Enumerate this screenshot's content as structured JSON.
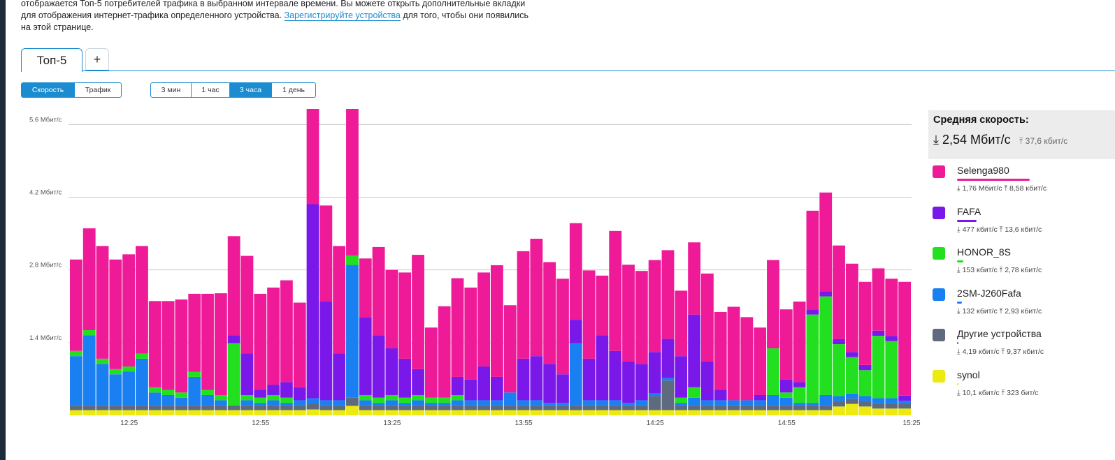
{
  "description": {
    "line1": "отображается Топ-5 потребителей трафика в выбранном интервале времени. Вы можете открыть дополнительные вкладки",
    "line2_pre": "для отображения интернет-трафика определенного устройства. ",
    "link": "Зарегистрируйте устройства",
    "line2_post": " для того, чтобы они появились",
    "line3": "на этой странице."
  },
  "tabs": [
    {
      "label": "Топ-5"
    }
  ],
  "add_tab_label": "+",
  "metric_toggle": [
    "Скорость",
    "Трафик"
  ],
  "metric_selected": "Скорость",
  "range_toggle": [
    "3 мин",
    "1 час",
    "3 часа",
    "1 день"
  ],
  "range_selected": "3 часа",
  "summary": {
    "title": "Средняя скорость:",
    "download": "2,54 Мбит/с",
    "upload": "37,6 кбит/с"
  },
  "legend": [
    {
      "name": "Selenga980",
      "color": "#ee1a98",
      "down": "1,76 Мбит/с",
      "up": "8,58 кбит/с",
      "share": 0.7
    },
    {
      "name": "FAFA",
      "color": "#7a18ea",
      "down": "477 кбит/с",
      "up": "13,6 кбит/с",
      "share": 0.19
    },
    {
      "name": "HONOR_8S",
      "color": "#22e01f",
      "down": "153 кбит/с",
      "up": "2,78 кбит/с",
      "share": 0.06
    },
    {
      "name": "2SM-J260Fafa",
      "color": "#1a7ff0",
      "down": "132 кбит/с",
      "up": "2,93 кбит/с",
      "share": 0.05
    },
    {
      "name": "Другие устройства",
      "color": "#5e6a7e",
      "down": "4,19 кбит/с",
      "up": "9,37 кбит/с",
      "share": 0.002
    },
    {
      "name": "synol",
      "color": "#ecea10",
      "down": "10,1 кбит/с",
      "up": "323 бит/с",
      "share": 0.004
    }
  ],
  "chart_data": {
    "type": "bar",
    "stacked": true,
    "ylabel_unit": "Мбит/с",
    "y_ticks": [
      "1.4 Мбит/с",
      "2.8 Мбит/с",
      "4.2 Мбит/с",
      "5.6 Мбит/с"
    ],
    "ylim": [
      0,
      5.9
    ],
    "x_ticks": [
      "12:25",
      "12:55",
      "13:25",
      "13:55",
      "14:25",
      "14:55",
      "15:25"
    ],
    "bar_count": 64,
    "series": [
      {
        "name": "synol",
        "color": "#ecea10",
        "values": [
          0.1,
          0.1,
          0.1,
          0.1,
          0.1,
          0.1,
          0.1,
          0.1,
          0.1,
          0.1,
          0.1,
          0.1,
          0.1,
          0.1,
          0.1,
          0.1,
          0.1,
          0.1,
          0.1,
          0.1,
          0.1,
          0.1,
          0.1,
          0.1,
          0.1,
          0.1,
          0.1,
          0.1,
          0.1,
          0.1,
          0.1,
          0.1,
          0.1,
          0.1,
          0.1,
          0.1,
          0.1,
          0.1,
          0.1,
          0.1,
          0.1,
          0.1,
          0.1,
          0.1,
          0.1,
          0.1,
          0.1,
          0.1,
          0.1,
          0.1,
          0.1,
          0.1,
          0.1,
          0.1,
          0.1,
          0.1,
          0.1,
          0.1,
          0.17,
          0.22,
          0.17,
          0.13,
          0.13,
          0.13
        ]
      },
      {
        "name": "Другие устройства",
        "color": "#5e6a7e",
        "values": [
          0.09,
          0.09,
          0.09,
          0.09,
          0.09,
          0.09,
          0.09,
          0.09,
          0.09,
          0.09,
          0.09,
          0.09,
          0.09,
          0.09,
          0.09,
          0.09,
          0.09,
          0.09,
          0.09,
          0.09,
          0.09,
          0.09,
          0.09,
          0.09,
          0.09,
          0.09,
          0.09,
          0.09,
          0.09,
          0.09,
          0.09,
          0.09,
          0.09,
          0.09,
          0.09,
          0.09,
          0.09,
          0.09,
          0.09,
          0.09,
          0.09,
          0.09,
          0.09,
          0.09,
          0.27,
          0.57,
          0.09,
          0.09,
          0.09,
          0.09,
          0.09,
          0.09,
          0.09,
          0.09,
          0.09,
          0.09,
          0.09,
          0.09,
          0.1,
          0.1,
          0.1,
          0.1,
          0.1,
          0.1
        ]
      },
      {
        "name": "2SM-J260Fafa",
        "color": "#1a7ff0",
        "values": [
          0.95,
          1.35,
          0.8,
          0.6,
          0.65,
          0.9,
          0.25,
          0.2,
          0.15,
          0.55,
          0.2,
          0.1,
          0.0,
          0.1,
          0.05,
          0.1,
          0.05,
          0.1,
          0.1,
          0.1,
          0.1,
          1.4,
          0.1,
          0.05,
          0.1,
          0.05,
          0.1,
          0.05,
          0.05,
          0.1,
          0.1,
          0.1,
          0.1,
          0.25,
          0.1,
          0.1,
          0.05,
          0.05,
          1.2,
          0.1,
          0.1,
          0.1,
          0.05,
          0.1,
          0.05,
          0.05,
          0.05,
          0.15,
          0.1,
          0.1,
          0.1,
          0.1,
          0.1,
          0.2,
          0.15,
          0.05,
          0.05,
          0.2,
          0.1,
          0.1,
          0.1,
          0.1,
          0.1,
          0.05
        ]
      },
      {
        "name": "HONOR_8S",
        "color": "#22e01f",
        "values": [
          0.1,
          0.1,
          0.1,
          0.1,
          0.1,
          0.1,
          0.1,
          0.1,
          0.1,
          0.1,
          0.1,
          0.1,
          1.2,
          0.1,
          0.1,
          0.1,
          0.1,
          0.0,
          0.0,
          0.0,
          0.0,
          0.1,
          0.1,
          0.1,
          0.1,
          0.1,
          0.1,
          0.1,
          0.1,
          0.1,
          0.0,
          0.0,
          0.0,
          0.0,
          0.0,
          0.0,
          0.0,
          0.0,
          0.0,
          0.0,
          0.0,
          0.0,
          0.0,
          0.0,
          0.0,
          0.0,
          0.1,
          0.2,
          0.0,
          0.0,
          0.0,
          0.0,
          0.0,
          0.9,
          0.1,
          0.3,
          1.7,
          1.9,
          1.0,
          0.7,
          0.5,
          1.2,
          1.1,
          0.0
        ]
      },
      {
        "name": "FAFA",
        "color": "#7a18ea",
        "values": [
          0,
          0,
          0,
          0,
          0,
          0,
          0,
          0,
          0,
          0,
          0,
          0,
          0.15,
          0.8,
          0.15,
          0.2,
          0.3,
          0.25,
          3.3,
          1.9,
          0.9,
          0.0,
          1.5,
          1.2,
          0.9,
          0.75,
          0.5,
          0.0,
          0.0,
          0.35,
          0.4,
          0.65,
          0.45,
          0.0,
          0.8,
          0.85,
          0.75,
          0.55,
          0.45,
          0.8,
          1.25,
          0.95,
          0.8,
          0.7,
          0.8,
          0.75,
          0.8,
          1.4,
          0.75,
          0.2,
          0.0,
          0.0,
          0.1,
          0.0,
          0.25,
          0.1,
          0.1,
          0.1,
          0.1,
          0.1,
          0.1,
          0.1,
          0.1,
          0.1
        ]
      },
      {
        "name": "Selenga980",
        "color": "#ee1a98",
        "values": [
          1.76,
          1.96,
          2.17,
          2.11,
          2.16,
          2.07,
          1.66,
          1.71,
          1.79,
          1.5,
          1.85,
          1.96,
          1.91,
          1.88,
          1.85,
          1.87,
          1.96,
          1.63,
          1.62,
          1.85,
          2.07,
          1.55,
          1.13,
          1.7,
          1.51,
          1.66,
          2.2,
          1.35,
          1.76,
          1.9,
          1.77,
          1.81,
          2.15,
          1.68,
          2.07,
          2.26,
          1.96,
          1.84,
          1.86,
          1.7,
          1.15,
          2.31,
          1.86,
          1.79,
          1.77,
          1.71,
          1.26,
          1.39,
          1.69,
          1.5,
          1.8,
          1.6,
          1.3,
          1.7,
          1.35,
          1.55,
          1.9,
          1.9,
          1.8,
          1.7,
          1.6,
          1.2,
          1.1,
          2.19
        ]
      }
    ],
    "fixed_totals": {
      "18": 5.9,
      "21": 5.9
    }
  }
}
